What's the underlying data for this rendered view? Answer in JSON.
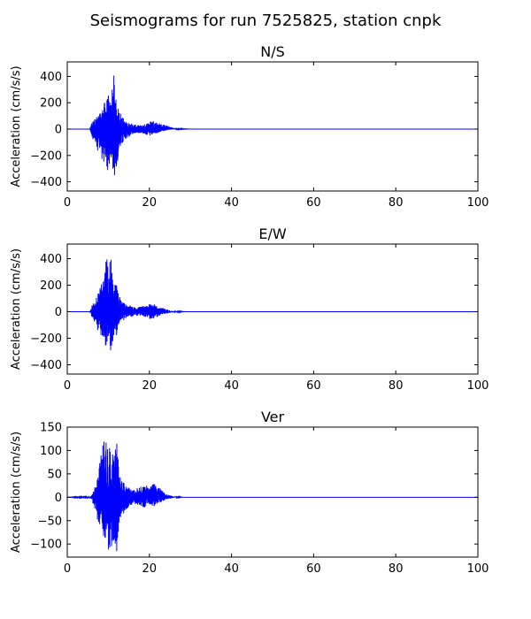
{
  "figure": {
    "title": "Seismograms for run 7525825, station cnpk"
  },
  "chart_data": [
    {
      "type": "line",
      "title": "N/S",
      "xlabel": "",
      "ylabel": "Acceleration (cm/s/s)",
      "xlim": [
        0,
        100
      ],
      "ylim": [
        -470,
        510
      ],
      "xticks": [
        0,
        20,
        40,
        60,
        80,
        100
      ],
      "yticks": [
        -400,
        -200,
        0,
        200,
        400
      ],
      "grid": false,
      "color": "#0000ff",
      "envelope": {
        "x": [
          0,
          5.5,
          6,
          7,
          8,
          9,
          10,
          10.6,
          11.2,
          12,
          13,
          14,
          15,
          16,
          17,
          18,
          19,
          20,
          21,
          22,
          23,
          24,
          25,
          26,
          27,
          28,
          30,
          100
        ],
        "pos": [
          0,
          0,
          60,
          90,
          120,
          200,
          260,
          190,
          460,
          180,
          130,
          60,
          50,
          40,
          30,
          30,
          40,
          60,
          70,
          50,
          40,
          30,
          20,
          10,
          5,
          2,
          0,
          0
        ],
        "neg": [
          0,
          0,
          -60,
          -140,
          -200,
          -280,
          -330,
          -250,
          -420,
          -280,
          -150,
          -80,
          -60,
          -40,
          -30,
          -30,
          -40,
          -60,
          -40,
          -30,
          -20,
          -10,
          -5,
          -2,
          0,
          0,
          0,
          0
        ]
      }
    },
    {
      "type": "line",
      "title": "E/W",
      "xlabel": "",
      "ylabel": "Acceleration (cm/s/s)",
      "xlim": [
        0,
        100
      ],
      "ylim": [
        -470,
        510
      ],
      "xticks": [
        0,
        20,
        40,
        60,
        80,
        100
      ],
      "yticks": [
        -400,
        -200,
        0,
        200,
        400
      ],
      "grid": false,
      "color": "#0000ff",
      "envelope": {
        "x": [
          0,
          5.5,
          6,
          7,
          8,
          9,
          9.6,
          10,
          10.6,
          11,
          12,
          13,
          14,
          15,
          16,
          17,
          18,
          19,
          20,
          21,
          22,
          23,
          24,
          25,
          26,
          27,
          28,
          30,
          100
        ],
        "pos": [
          0,
          0,
          50,
          100,
          180,
          280,
          450,
          300,
          420,
          250,
          200,
          90,
          60,
          50,
          40,
          30,
          40,
          50,
          70,
          60,
          40,
          30,
          20,
          10,
          5,
          3,
          1,
          0,
          0
        ],
        "neg": [
          0,
          0,
          -40,
          -100,
          -200,
          -250,
          -280,
          -260,
          -300,
          -240,
          -180,
          -80,
          -60,
          -40,
          -40,
          -30,
          -30,
          -40,
          -60,
          -50,
          -40,
          -25,
          -15,
          -8,
          -4,
          -2,
          0,
          0,
          0
        ]
      }
    },
    {
      "type": "line",
      "title": "Ver",
      "xlabel": "",
      "ylabel": "Acceleration (cm/s/s)",
      "xlim": [
        0,
        100
      ],
      "ylim": [
        -128,
        150
      ],
      "xticks": [
        0,
        20,
        40,
        60,
        80,
        100
      ],
      "yticks": [
        -100,
        -50,
        0,
        50,
        100,
        150
      ],
      "grid": false,
      "color": "#0000ff",
      "envelope": {
        "x": [
          0,
          5.5,
          6,
          7,
          8,
          9,
          10,
          11,
          12,
          12.5,
          13,
          14,
          15,
          16,
          17,
          18,
          19,
          20,
          21,
          22,
          23,
          24,
          25,
          26,
          27,
          28,
          30,
          100
        ],
        "pos": [
          0,
          1,
          5,
          30,
          80,
          130,
          110,
          100,
          138,
          70,
          40,
          30,
          20,
          15,
          20,
          25,
          28,
          20,
          30,
          25,
          15,
          8,
          4,
          2,
          1,
          0,
          0,
          0
        ],
        "neg": [
          0,
          -1,
          -5,
          -40,
          -70,
          -100,
          -115,
          -110,
          -120,
          -70,
          -50,
          -30,
          -20,
          -15,
          -15,
          -20,
          -22,
          -15,
          -20,
          -15,
          -10,
          -5,
          -3,
          -1,
          0,
          0,
          0,
          0
        ]
      }
    }
  ]
}
